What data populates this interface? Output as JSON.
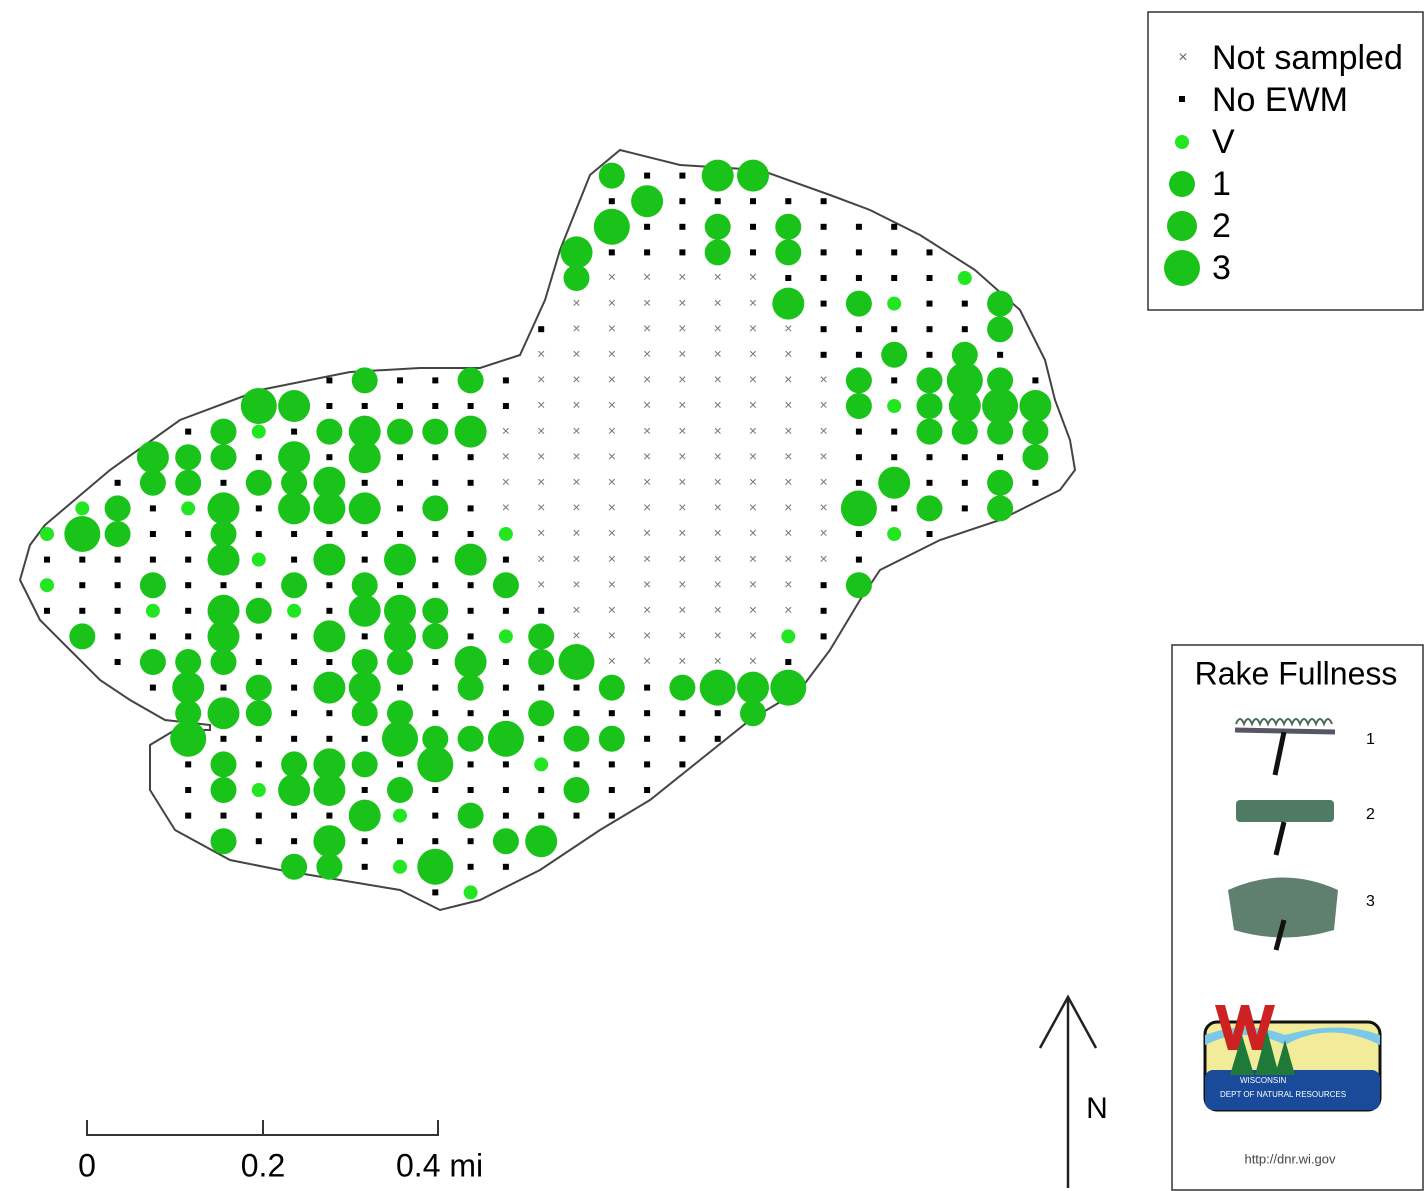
{
  "legend": {
    "entries": [
      "Not sampled",
      "No EWM",
      "V",
      "1",
      "2",
      "3"
    ]
  },
  "scale_bar": {
    "labels": [
      "0",
      "0.2",
      "0.4 mi"
    ]
  },
  "north_arrow": {
    "label": "N"
  },
  "rake_panel": {
    "title": "Rake Fullness",
    "levels": [
      "1",
      "2",
      "3"
    ],
    "logo_lines": [
      "WISCONSIN",
      "DEPT OF NATURAL RESOURCES"
    ],
    "url": "http://dnr.wi.gov"
  }
}
